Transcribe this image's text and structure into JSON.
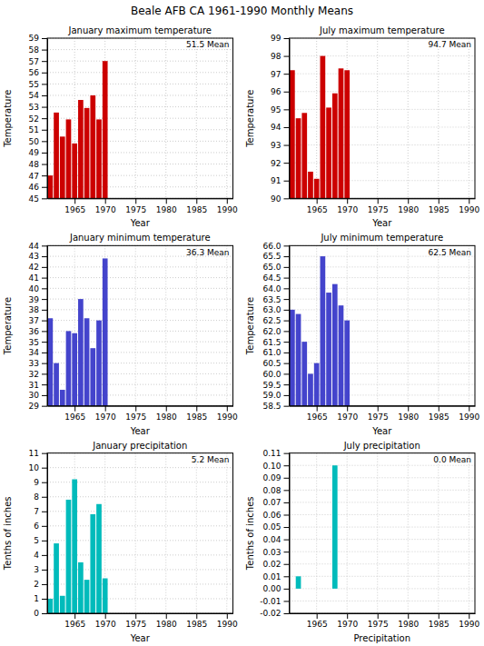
{
  "title": "Beale AFB CA   1961-1990 Monthly Means",
  "chart_data": [
    {
      "type": "bar",
      "title": "January maximum temperature",
      "x_label": "Year",
      "y_label": "Temperature",
      "annotation": "51.5  Mean",
      "x": [
        1961,
        1962,
        1963,
        1964,
        1965,
        1966,
        1967,
        1968,
        1969,
        1970
      ],
      "values": [
        47.0,
        52.5,
        50.4,
        51.9,
        49.8,
        53.6,
        52.9,
        54.0,
        51.9,
        57.0
      ],
      "color": "#cc0000",
      "xlim": [
        1960.5,
        1991
      ],
      "xticks": [
        1965,
        1970,
        1975,
        1980,
        1985,
        1990
      ],
      "ylim": [
        45,
        59
      ],
      "yticks": [
        45,
        46,
        47,
        48,
        49,
        50,
        51,
        52,
        53,
        54,
        55,
        56,
        57,
        58,
        59
      ],
      "grid": true
    },
    {
      "type": "bar",
      "title": "July maximum temperature",
      "x_label": "Year",
      "y_label": "Temperature",
      "annotation": "94.7  Mean",
      "x": [
        1961,
        1962,
        1963,
        1964,
        1965,
        1966,
        1967,
        1968,
        1969,
        1970
      ],
      "values": [
        97.2,
        94.5,
        94.8,
        91.5,
        91.1,
        98.0,
        95.1,
        95.9,
        97.3,
        97.2
      ],
      "color": "#cc0000",
      "xlim": [
        1960.5,
        1991
      ],
      "xticks": [
        1965,
        1970,
        1975,
        1980,
        1985,
        1990
      ],
      "ylim": [
        90,
        99
      ],
      "yticks": [
        90,
        91,
        92,
        93,
        94,
        95,
        96,
        97,
        98,
        99
      ],
      "grid": true
    },
    {
      "type": "bar",
      "title": "January minimum temperature",
      "x_label": "Year",
      "y_label": "Temperature",
      "annotation": "36.3  Mean",
      "x": [
        1961,
        1962,
        1963,
        1964,
        1965,
        1966,
        1967,
        1968,
        1969,
        1970
      ],
      "values": [
        37.2,
        33.0,
        30.5,
        36.0,
        35.8,
        39.0,
        37.2,
        34.4,
        37.0,
        42.8
      ],
      "color": "#4444cc",
      "xlim": [
        1960.5,
        1991
      ],
      "xticks": [
        1965,
        1970,
        1975,
        1980,
        1985,
        1990
      ],
      "ylim": [
        29,
        44
      ],
      "yticks": [
        29,
        30,
        31,
        32,
        33,
        34,
        35,
        36,
        37,
        38,
        39,
        40,
        41,
        42,
        43,
        44
      ],
      "grid": true
    },
    {
      "type": "bar",
      "title": "July minimum temperature",
      "x_label": "Year",
      "y_label": "Temperature",
      "annotation": "62.5  Mean",
      "x": [
        1961,
        1962,
        1963,
        1964,
        1965,
        1966,
        1967,
        1968,
        1969,
        1970
      ],
      "values": [
        63.0,
        62.8,
        61.5,
        60.0,
        60.5,
        65.5,
        63.8,
        64.2,
        63.2,
        62.5
      ],
      "color": "#4444cc",
      "xlim": [
        1960.5,
        1991
      ],
      "xticks": [
        1965,
        1970,
        1975,
        1980,
        1985,
        1990
      ],
      "ylim": [
        58.5,
        66.0
      ],
      "yticks": [
        58.5,
        {
          "value": 59.0,
          "label": "59.0"
        },
        59.5,
        {
          "value": 60.0,
          "label": "60.0"
        },
        60.5,
        {
          "value": 61.0,
          "label": "61.0"
        },
        61.5,
        {
          "value": 62.0,
          "label": "62.0"
        },
        62.5,
        {
          "value": 63.0,
          "label": "63.0"
        },
        63.5,
        {
          "value": 64.0,
          "label": "64.0"
        },
        64.5,
        {
          "value": 65.0,
          "label": "65.0"
        },
        65.5,
        {
          "value": 66.0,
          "label": "66.0"
        }
      ],
      "grid": true
    },
    {
      "type": "bar",
      "title": "January precipitation",
      "x_label": "Year",
      "y_label": "Tenths of inches",
      "annotation": "5.2  Mean",
      "x": [
        1961,
        1962,
        1963,
        1964,
        1965,
        1966,
        1967,
        1968,
        1969,
        1970
      ],
      "values": [
        1.0,
        4.8,
        1.2,
        7.8,
        9.2,
        3.5,
        2.3,
        6.8,
        7.5,
        2.4
      ],
      "color": "#00bbbb",
      "xlim": [
        1960.5,
        1991
      ],
      "xticks": [
        1965,
        1970,
        1975,
        1980,
        1985,
        1990
      ],
      "ylim": [
        0,
        11
      ],
      "yticks": [
        0,
        1,
        2,
        3,
        4,
        5,
        6,
        7,
        8,
        9,
        10,
        11
      ],
      "grid": true
    },
    {
      "type": "bar",
      "title": "July precipitation",
      "x_label": "Precipitation",
      "y_label": "Tenths of inches",
      "annotation": "0.0  Mean",
      "x": [
        1961,
        1962,
        1963,
        1964,
        1965,
        1966,
        1967,
        1968,
        1969,
        1970
      ],
      "values": [
        0.0,
        0.01,
        0.0,
        0.0,
        0.0,
        0.0,
        0.0,
        0.1,
        0.0,
        0.0
      ],
      "color": "#00bbbb",
      "xlim": [
        1960.5,
        1991
      ],
      "xticks": [
        1965,
        1970,
        1975,
        1980,
        1985,
        1990
      ],
      "ylim": [
        -0.02,
        0.11
      ],
      "yticks": [
        -0.02,
        -0.01,
        {
          "value": 0.0,
          "label": "0.00"
        },
        0.01,
        0.02,
        0.03,
        0.04,
        0.05,
        0.06,
        0.07,
        0.08,
        0.09,
        {
          "value": 0.1,
          "label": "0.10"
        },
        0.11
      ],
      "grid": true
    }
  ]
}
